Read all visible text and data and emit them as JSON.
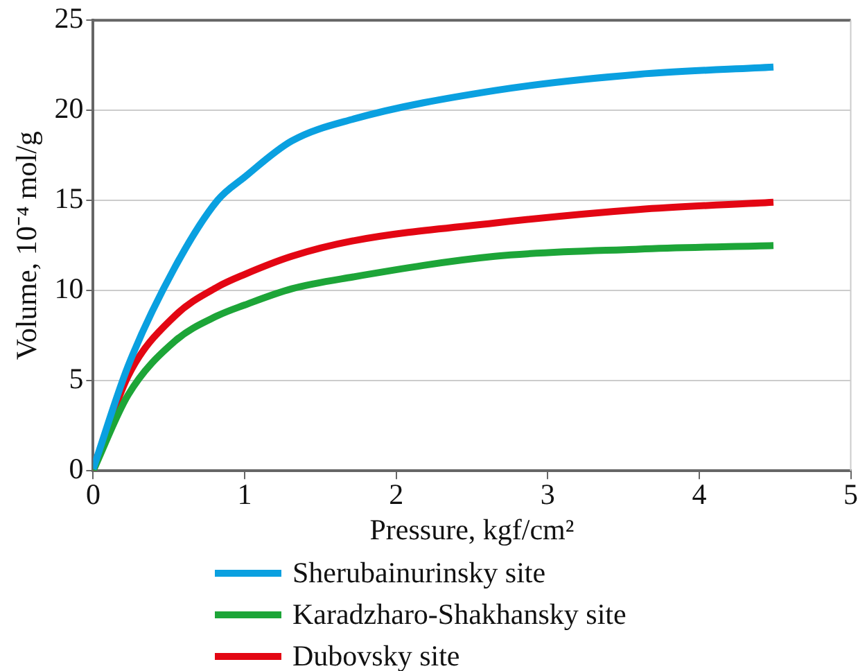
{
  "chart_data": {
    "type": "line",
    "xlabel": "Pressure, kgf/cm²",
    "ylabel": "Volume, 10⁻⁴ mol/g",
    "xlim": [
      0,
      5
    ],
    "xticks": [
      0,
      1,
      2,
      3,
      4,
      5
    ],
    "ylim": [
      0,
      25
    ],
    "yticks": [
      0,
      5,
      10,
      15,
      20,
      25
    ],
    "grid": "y",
    "legend": "bottom",
    "marker": "none",
    "line_style": "solid",
    "x": [
      0,
      0.23,
      0.54,
      0.82,
      1,
      1.31,
      1.71,
      2.65,
      3.6,
      4.49
    ],
    "series": [
      {
        "name": "Sherubainurinsky site",
        "color": "#0aa0e0",
        "values": [
          0.1,
          5.8,
          11.3,
          15,
          16.3,
          18.3,
          19.5,
          21.1,
          22,
          22.4
        ]
      },
      {
        "name": "Karadzharo-Shakhansky site",
        "color": "#1da538",
        "values": [
          0,
          4.2,
          7.2,
          8.6,
          9.2,
          10.1,
          10.75,
          11.9,
          12.3,
          12.5
        ]
      },
      {
        "name": "Dubovsky site",
        "color": "#e30613",
        "values": [
          0,
          5.25,
          8.6,
          10.2,
          10.9,
          11.9,
          12.75,
          13.75,
          14.5,
          14.9
        ]
      }
    ]
  }
}
